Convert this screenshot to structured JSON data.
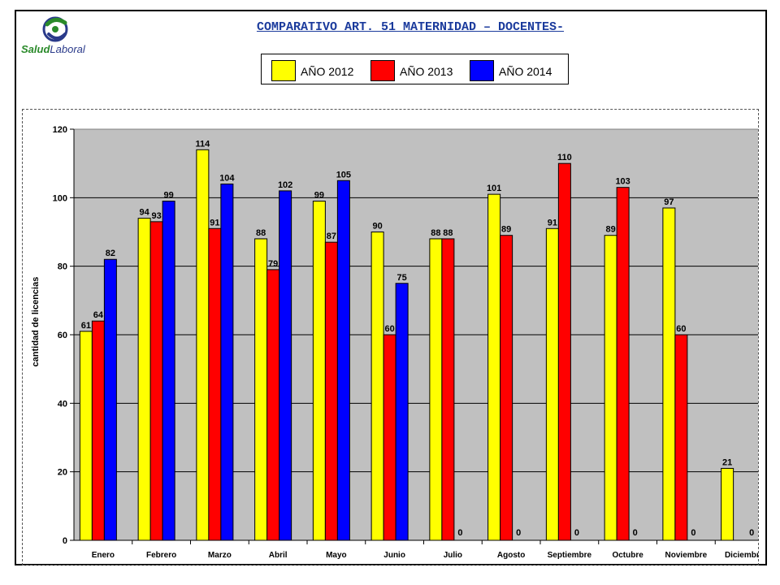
{
  "logo": {
    "text_a": "Salud",
    "text_b": "Laboral"
  },
  "colors": {
    "y2012": "#ffff00",
    "y2013": "#ff0000",
    "y2014": "#0000ff",
    "plot_bg": "#c0c0c0"
  },
  "chart_data": {
    "type": "bar",
    "title": "COMPARATIVO ART. 51 MATERNIDAD – DOCENTES-",
    "ylabel": "cantidad de licencias",
    "xlabel": "",
    "ylim": [
      0,
      120
    ],
    "yticks": [
      0,
      20,
      40,
      60,
      80,
      100,
      120
    ],
    "grid": true,
    "legend_position": "top",
    "categories": [
      "Enero",
      "Febrero",
      "Marzo",
      "Abril",
      "Mayo",
      "Junio",
      "Julio",
      "Agosto",
      "Septiembre",
      "Octubre",
      "Noviembre",
      "Diciembre"
    ],
    "series": [
      {
        "name": "AÑO 2012",
        "color": "#ffff00",
        "values": [
          61,
          94,
          114,
          88,
          99,
          90,
          88,
          101,
          91,
          89,
          97,
          21
        ]
      },
      {
        "name": "AÑO 2013",
        "color": "#ff0000",
        "values": [
          64,
          93,
          91,
          79,
          87,
          60,
          88,
          89,
          110,
          103,
          60,
          null
        ]
      },
      {
        "name": "AÑO 2014",
        "color": "#0000ff",
        "values": [
          82,
          99,
          104,
          102,
          105,
          75,
          0,
          0,
          0,
          0,
          0,
          0
        ]
      }
    ]
  }
}
